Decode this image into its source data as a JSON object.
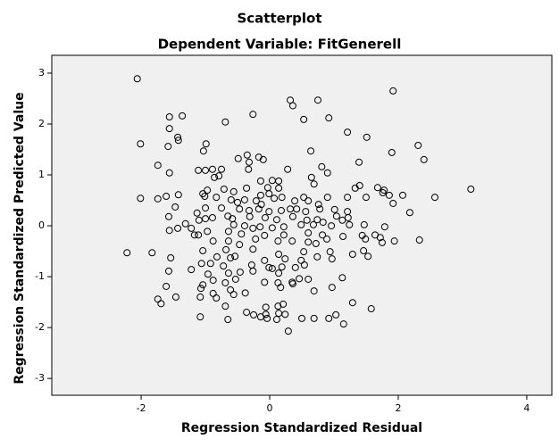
{
  "chart_data": {
    "type": "scatter",
    "title": "Scatterplot",
    "subtitle": "Dependent Variable: FitGenerell",
    "x_label": "Regression Standardized Residual",
    "y_label": "Regression Standardized Predicted Value",
    "marker_color": "#000000",
    "background": "#f0f0f0",
    "xlim": [
      -3.39,
      4.39
    ],
    "xticks": [
      -2,
      0,
      2,
      4
    ],
    "ylim": [
      -3.33,
      3.35
    ],
    "yticks": [
      -3,
      -2,
      -1,
      0,
      1,
      2,
      3
    ],
    "x": [
      -2.06,
      1.92,
      0.32,
      0.36,
      0.75,
      -1.56,
      -1.36,
      -0.26,
      0.53,
      0.92,
      -0.69,
      -1.56,
      1.21,
      1.51,
      -1.43,
      -1.42,
      -2.01,
      -0.99,
      -1.58,
      -1.03,
      0.64,
      2.31,
      1.9,
      -0.49,
      -0.35,
      -0.17,
      -0.1,
      -0.32,
      1.39,
      2.4,
      -1.74,
      0.81,
      0.28,
      -1.56,
      -1.11,
      -1.0,
      -0.89,
      -0.75,
      -0.33,
      0.9,
      -0.86,
      -0.79,
      0.65,
      -0.14,
      0.04,
      0.14,
      0.69,
      1.4,
      1.33,
      1.68,
      3.13,
      -0.36,
      -0.03,
      0.14,
      -0.97,
      -0.71,
      -0.56,
      1.76,
      1.78,
      -1.04,
      -1.01,
      -0.83,
      -1.42,
      -1.61,
      -2.01,
      -1.74,
      -0.14,
      -0.01,
      0.19,
      0.53,
      0.9,
      1.21,
      1.5,
      1.86,
      2.07,
      2.57,
      -0.6,
      -0.5,
      -0.39,
      -0.21,
      -0.13,
      0.07,
      0.39,
      0.6,
      0.76,
      1.92,
      -1.47,
      -1.0,
      -0.75,
      -0.47,
      -0.32,
      -0.17,
      -0.01,
      0.18,
      0.32,
      0.42,
      0.56,
      0.78,
      1.01,
      1.21,
      2.18,
      -1.13,
      -1.0,
      -0.89,
      -0.65,
      -0.58,
      -0.31,
      -0.07,
      0.11,
      0.36,
      0.58,
      0.74,
      0.83,
      1.04,
      1.13,
      1.22,
      -1.1,
      -1.57,
      -1.31,
      -1.22,
      -1.43,
      1.79,
      -0.56,
      -0.39,
      -0.26,
      -0.15,
      0.04,
      0.22,
      0.49,
      0.68,
      0.96,
      1.24,
      1.47,
      -1.56,
      -1.17,
      -1.11,
      -0.97,
      -0.64,
      -0.44,
      -0.08,
      0.22,
      0.6,
      0.82,
      1.14,
      1.44,
      1.64,
      1.72,
      -0.88,
      -0.64,
      -0.47,
      -0.22,
      0.13,
      0.35,
      0.6,
      0.72,
      0.89,
      1.49,
      1.75,
      1.94,
      2.33,
      -2.22,
      -1.83,
      -1.04,
      -0.68,
      -0.26,
      0.14,
      0.53,
      0.94,
      1.29,
      1.46,
      1.53,
      -1.54,
      -0.82,
      -0.61,
      -0.54,
      -0.08,
      0.24,
      0.49,
      0.74,
      0.97,
      -1.06,
      -0.92,
      -1.22,
      -0.72,
      -0.28,
      -0.01,
      0.04,
      0.19,
      0.4,
      0.54,
      -1.57,
      -0.96,
      -0.64,
      -0.46,
      -0.26,
      0.14,
      0.46,
      1.13,
      -0.88,
      -0.69,
      -0.53,
      -0.08,
      0.13,
      0.35,
      0.6,
      -1.04,
      -1.61,
      -1.07,
      -0.61,
      0.17,
      0.36,
      0.69,
      0.97,
      -0.88,
      -1.08,
      -0.83,
      -0.56,
      -0.38,
      -1.46,
      -1.74,
      -1.69,
      1.29,
      -0.69,
      -0.06,
      0.13,
      0.21,
      1.58,
      -0.36,
      -0.25,
      -0.14,
      -0.04,
      -0.06,
      0.14,
      0.24,
      0.11,
      -1.08,
      -0.65,
      0.5,
      0.69,
      0.92,
      1.03,
      1.15,
      0.29
    ],
    "values": [
      2.89,
      2.65,
      2.47,
      2.36,
      2.47,
      2.14,
      2.16,
      2.19,
      2.09,
      2.12,
      2.04,
      1.91,
      1.84,
      1.74,
      1.74,
      1.68,
      1.61,
      1.61,
      1.56,
      1.47,
      1.47,
      1.58,
      1.44,
      1.32,
      1.39,
      1.35,
      1.3,
      1.25,
      1.25,
      1.3,
      1.19,
      1.16,
      1.11,
      1.04,
      1.09,
      1.09,
      1.11,
      1.11,
      1.11,
      1.04,
      0.95,
      0.98,
      0.95,
      0.88,
      0.89,
      0.88,
      0.82,
      0.79,
      0.74,
      0.75,
      0.72,
      0.74,
      0.75,
      0.74,
      0.7,
      0.72,
      0.67,
      0.65,
      0.7,
      0.63,
      0.58,
      0.56,
      0.61,
      0.58,
      0.54,
      0.53,
      0.6,
      0.63,
      0.56,
      0.56,
      0.56,
      0.56,
      0.56,
      0.6,
      0.6,
      0.56,
      0.51,
      0.46,
      0.51,
      0.49,
      0.42,
      0.54,
      0.49,
      0.49,
      0.42,
      0.44,
      0.37,
      0.35,
      0.35,
      0.33,
      0.3,
      0.33,
      0.28,
      0.3,
      0.33,
      0.33,
      0.28,
      0.33,
      0.32,
      0.28,
      0.26,
      0.25,
      0.14,
      0.16,
      0.19,
      0.14,
      0.18,
      0.16,
      0.12,
      0.18,
      0.11,
      0.12,
      0.07,
      0.19,
      0.11,
      0.16,
      0.11,
      0.18,
      0.04,
      -0.05,
      -0.05,
      -0.02,
      0.02,
      0.0,
      -0.05,
      -0.02,
      -0.04,
      -0.02,
      0.02,
      0.02,
      0.0,
      0.02,
      0.02,
      -0.09,
      -0.18,
      -0.18,
      -0.11,
      -0.11,
      -0.16,
      -0.19,
      -0.18,
      -0.14,
      -0.18,
      -0.21,
      -0.19,
      -0.18,
      -0.23,
      -0.3,
      -0.3,
      -0.37,
      -0.26,
      -0.3,
      -0.3,
      -0.32,
      -0.35,
      -0.26,
      -0.26,
      -0.33,
      -0.3,
      -0.28,
      -0.53,
      -0.53,
      -0.49,
      -0.47,
      -0.46,
      -0.56,
      -0.51,
      -0.51,
      -0.56,
      -0.49,
      -0.6,
      -0.63,
      -0.61,
      -0.63,
      -0.6,
      -0.68,
      -0.65,
      -0.68,
      -0.61,
      -0.65,
      -0.74,
      -0.74,
      -0.86,
      -0.79,
      -0.77,
      -0.82,
      -0.84,
      -0.81,
      -0.82,
      -0.77,
      -0.89,
      -0.95,
      -0.93,
      -0.91,
      -0.89,
      -0.93,
      -1.04,
      -1.02,
      -1.07,
      -1.12,
      -1.05,
      -1.11,
      -1.12,
      -1.11,
      -1.05,
      -1.16,
      -1.19,
      -1.23,
      -1.26,
      -1.21,
      -1.14,
      -1.28,
      -1.21,
      -1.33,
      -1.4,
      -1.42,
      -1.35,
      -1.32,
      -1.4,
      -1.44,
      -1.53,
      -1.51,
      -1.58,
      -1.6,
      -1.58,
      -1.54,
      -1.63,
      -1.7,
      -1.75,
      -1.79,
      -1.82,
      -1.74,
      -1.72,
      -1.74,
      -1.84,
      -1.79,
      -1.84,
      -1.82,
      -1.82,
      -1.82,
      -1.75,
      -1.93,
      -2.07
    ]
  }
}
